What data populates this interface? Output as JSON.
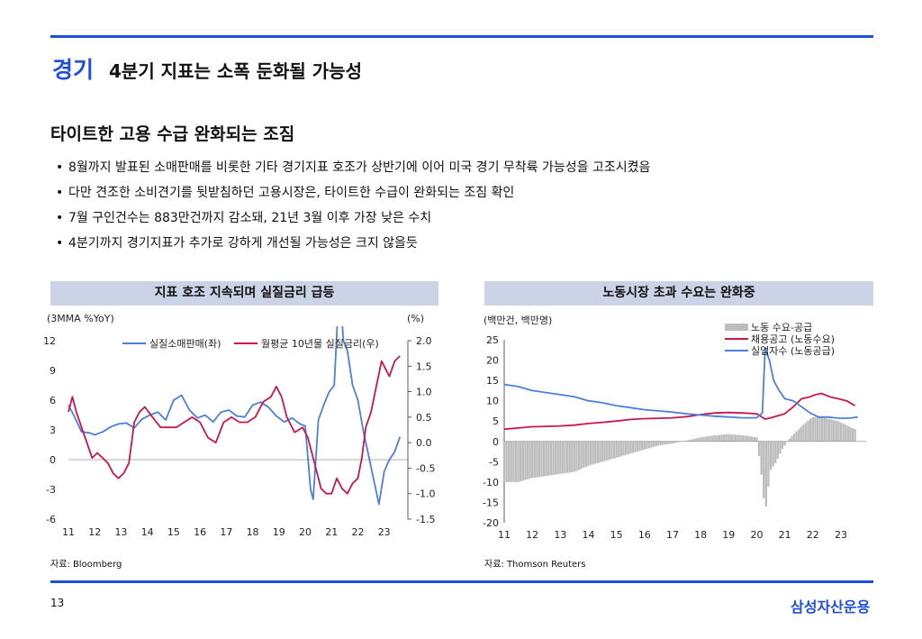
{
  "header": {
    "category": "경기",
    "title": "4분기 지표는 소폭 둔화될 가능성"
  },
  "section_title": "타이트한 고용 수급 완화되는 조짐",
  "bullets": [
    "8월까지 발표된 소매판매를 비롯한 기타 경기지표 호조가 상반기에 이어 미국 경기 무착륙 가능성을 고조시켰음",
    "다만 견조한 소비견기를 뒷받침하던 고용시장은, 타이트한 수급이 완화되는 조짐 확인",
    "7월 구인건수는 883만건까지 감소돼, 21년 3월 이후 가장 낮은 수치",
    "4분기까지 경기지표가 추가로 강하게 개선될 가능성은 크지 않을듯"
  ],
  "left_panel": {
    "title": "지표 호조 지속되며 실질금리 급등",
    "unit_left": "(3MMA %YoY)",
    "unit_right": "(%)",
    "source": "자료: Bloomberg"
  },
  "right_panel": {
    "title": "노동시장 초과 수요는 완화중",
    "unit_left": "(백만건, 백만명)",
    "source": "자료: Thomson Reuters"
  },
  "footer": {
    "page": "13",
    "brand": "삼성자산운용"
  },
  "colors": {
    "accent": "#1f4fd8",
    "blue_series": "#4e7fd9",
    "red_series": "#c8174f",
    "bar_series": "#bdbdbd",
    "panel_header": "#cdd3e6"
  },
  "chart_data": [
    {
      "type": "line",
      "title": "지표 호조 지속되며 실질금리 급등",
      "x_ticks": [
        "11",
        "12",
        "13",
        "14",
        "15",
        "16",
        "17",
        "18",
        "19",
        "20",
        "21",
        "22",
        "23"
      ],
      "y_left": {
        "ticks": [
          "12",
          "9",
          "6",
          "3",
          "0",
          "-3",
          "-6"
        ],
        "lim": [
          -6,
          12
        ]
      },
      "y_right": {
        "ticks": [
          "2.0",
          "1.5",
          "1.0",
          "0.5",
          "0.0",
          "-0.5",
          "-1.0",
          "-1.5"
        ],
        "lim": [
          -1.5,
          2.0
        ]
      },
      "x_lim": [
        2011,
        2023.9
      ],
      "legend_position": "top",
      "series": [
        {
          "name": "실질소매판매(좌)",
          "axis": "left",
          "color": "#4e7fd9",
          "x": [
            2011.0,
            2011.2,
            2011.5,
            2011.8,
            2012.0,
            2012.3,
            2012.6,
            2012.9,
            2013.2,
            2013.5,
            2013.8,
            2014.1,
            2014.4,
            2014.7,
            2015.0,
            2015.3,
            2015.6,
            2015.9,
            2016.2,
            2016.5,
            2016.8,
            2017.1,
            2017.4,
            2017.7,
            2018.0,
            2018.3,
            2018.6,
            2018.9,
            2019.2,
            2019.5,
            2019.8,
            2020.0,
            2020.2,
            2020.3,
            2020.4,
            2020.5,
            2020.7,
            2020.9,
            2021.1,
            2021.3,
            2021.45,
            2021.6,
            2021.8,
            2022.0,
            2022.2,
            2022.4,
            2022.6,
            2022.8,
            2023.0,
            2023.2,
            2023.4,
            2023.6
          ],
          "y": [
            5.5,
            4.5,
            2.8,
            2.7,
            2.5,
            2.8,
            3.3,
            3.6,
            3.7,
            3.2,
            4.1,
            4.5,
            4.8,
            4.0,
            6.0,
            6.5,
            5.0,
            4.2,
            4.5,
            3.8,
            4.8,
            5.0,
            4.4,
            4.3,
            5.5,
            5.8,
            5.3,
            4.4,
            3.8,
            4.2,
            3.6,
            3.4,
            -3.0,
            -4.0,
            0.0,
            4.0,
            5.5,
            6.8,
            7.5,
            18.0,
            12.0,
            11.0,
            7.5,
            6.0,
            3.0,
            0.5,
            -2.0,
            -4.5,
            -1.2,
            0.0,
            0.8,
            2.3
          ]
        },
        {
          "name": "월평균 10년물 실질금리(우)",
          "axis": "right",
          "color": "#c8174f",
          "x": [
            2011.0,
            2011.15,
            2011.3,
            2011.5,
            2011.7,
            2011.9,
            2012.1,
            2012.3,
            2012.5,
            2012.7,
            2012.9,
            2013.1,
            2013.3,
            2013.5,
            2013.7,
            2013.9,
            2014.2,
            2014.5,
            2014.8,
            2015.1,
            2015.4,
            2015.7,
            2016.0,
            2016.3,
            2016.6,
            2016.9,
            2017.2,
            2017.5,
            2017.8,
            2018.1,
            2018.4,
            2018.7,
            2018.9,
            2019.1,
            2019.3,
            2019.6,
            2019.9,
            2020.1,
            2020.3,
            2020.45,
            2020.6,
            2020.8,
            2021.0,
            2021.2,
            2021.4,
            2021.6,
            2021.8,
            2022.0,
            2022.15,
            2022.3,
            2022.5,
            2022.7,
            2022.9,
            2023.0,
            2023.2,
            2023.4,
            2023.6
          ],
          "y": [
            0.6,
            0.9,
            0.6,
            0.3,
            0.0,
            -0.3,
            -0.2,
            -0.3,
            -0.4,
            -0.6,
            -0.7,
            -0.6,
            -0.4,
            0.4,
            0.6,
            0.7,
            0.5,
            0.3,
            0.3,
            0.3,
            0.4,
            0.5,
            0.4,
            0.1,
            0.0,
            0.4,
            0.5,
            0.4,
            0.4,
            0.5,
            0.8,
            0.9,
            1.1,
            0.9,
            0.5,
            0.2,
            0.3,
            0.1,
            -0.3,
            -0.6,
            -0.9,
            -1.0,
            -1.0,
            -0.7,
            -0.9,
            -1.0,
            -0.8,
            -0.7,
            -0.3,
            0.3,
            0.6,
            1.1,
            1.6,
            1.5,
            1.3,
            1.6,
            1.7
          ]
        }
      ]
    },
    {
      "type": "bar",
      "title": "노동시장 초과 수요는 완화중",
      "x_ticks": [
        "11",
        "12",
        "13",
        "14",
        "15",
        "16",
        "17",
        "18",
        "19",
        "20",
        "21",
        "22",
        "23"
      ],
      "y": {
        "ticks": [
          "25",
          "20",
          "15",
          "10",
          "5",
          "0",
          "-5",
          "-10",
          "-15",
          "-20"
        ],
        "lim": [
          -20,
          25
        ]
      },
      "x_lim": [
        2011,
        2023.9
      ],
      "legend_position": "top-right",
      "series": [
        {
          "name": "노동 수요-공급",
          "kind": "bar",
          "color": "#bdbdbd",
          "x": [
            2011.0,
            2011.5,
            2012.0,
            2012.5,
            2013.0,
            2013.5,
            2014.0,
            2014.5,
            2015.0,
            2015.5,
            2016.0,
            2016.5,
            2017.0,
            2017.5,
            2018.0,
            2018.5,
            2019.0,
            2019.5,
            2020.0,
            2020.2,
            2020.3,
            2020.4,
            2020.5,
            2020.7,
            2020.9,
            2021.2,
            2021.5,
            2021.8,
            2022.0,
            2022.3,
            2022.6,
            2022.9,
            2023.2,
            2023.5
          ],
          "y": [
            -10,
            -10,
            -9,
            -8.5,
            -8,
            -7.5,
            -6,
            -5,
            -4,
            -3,
            -2,
            -1,
            -0.5,
            0.2,
            1,
            1.5,
            1.8,
            1.5,
            1,
            -10,
            -18,
            -12,
            -7,
            -5,
            -2,
            1,
            3,
            5,
            6,
            6,
            5.5,
            5,
            4,
            3
          ]
        },
        {
          "name": "채용공고 (노동수요)",
          "kind": "line",
          "color": "#c8174f",
          "x": [
            2011.0,
            2011.5,
            2012.0,
            2012.5,
            2013.0,
            2013.5,
            2014.0,
            2014.5,
            2015.0,
            2015.5,
            2016.0,
            2016.5,
            2017.0,
            2017.5,
            2018.0,
            2018.5,
            2019.0,
            2019.5,
            2020.0,
            2020.3,
            2020.5,
            2020.8,
            2021.0,
            2021.3,
            2021.6,
            2021.9,
            2022.1,
            2022.3,
            2022.6,
            2022.9,
            2023.2,
            2023.5
          ],
          "y": [
            3.0,
            3.3,
            3.6,
            3.7,
            3.8,
            4.0,
            4.4,
            4.7,
            5.0,
            5.4,
            5.6,
            5.7,
            5.8,
            6.1,
            6.6,
            7.0,
            7.1,
            7.0,
            6.8,
            5.5,
            5.8,
            6.4,
            6.8,
            8.5,
            10.5,
            11.0,
            11.5,
            11.8,
            11.0,
            10.5,
            10.0,
            8.8
          ]
        },
        {
          "name": "실업자수 (노동공급)",
          "kind": "line",
          "color": "#4e7fd9",
          "x": [
            2011.0,
            2011.5,
            2012.0,
            2012.5,
            2013.0,
            2013.5,
            2014.0,
            2014.5,
            2015.0,
            2015.5,
            2016.0,
            2016.5,
            2017.0,
            2017.5,
            2018.0,
            2018.5,
            2019.0,
            2019.5,
            2020.0,
            2020.2,
            2020.3,
            2020.45,
            2020.6,
            2020.8,
            2021.0,
            2021.3,
            2021.6,
            2021.9,
            2022.2,
            2022.5,
            2022.8,
            2023.1,
            2023.4,
            2023.6
          ],
          "y": [
            14.0,
            13.5,
            12.5,
            12.0,
            11.5,
            11.0,
            10.0,
            9.5,
            8.8,
            8.3,
            7.8,
            7.5,
            7.2,
            6.8,
            6.5,
            6.2,
            6.0,
            5.8,
            5.8,
            7.0,
            23.0,
            20.0,
            15.0,
            12.5,
            10.5,
            10.0,
            8.5,
            7.0,
            6.0,
            6.0,
            5.8,
            5.7,
            5.8,
            6.0
          ]
        }
      ]
    }
  ]
}
